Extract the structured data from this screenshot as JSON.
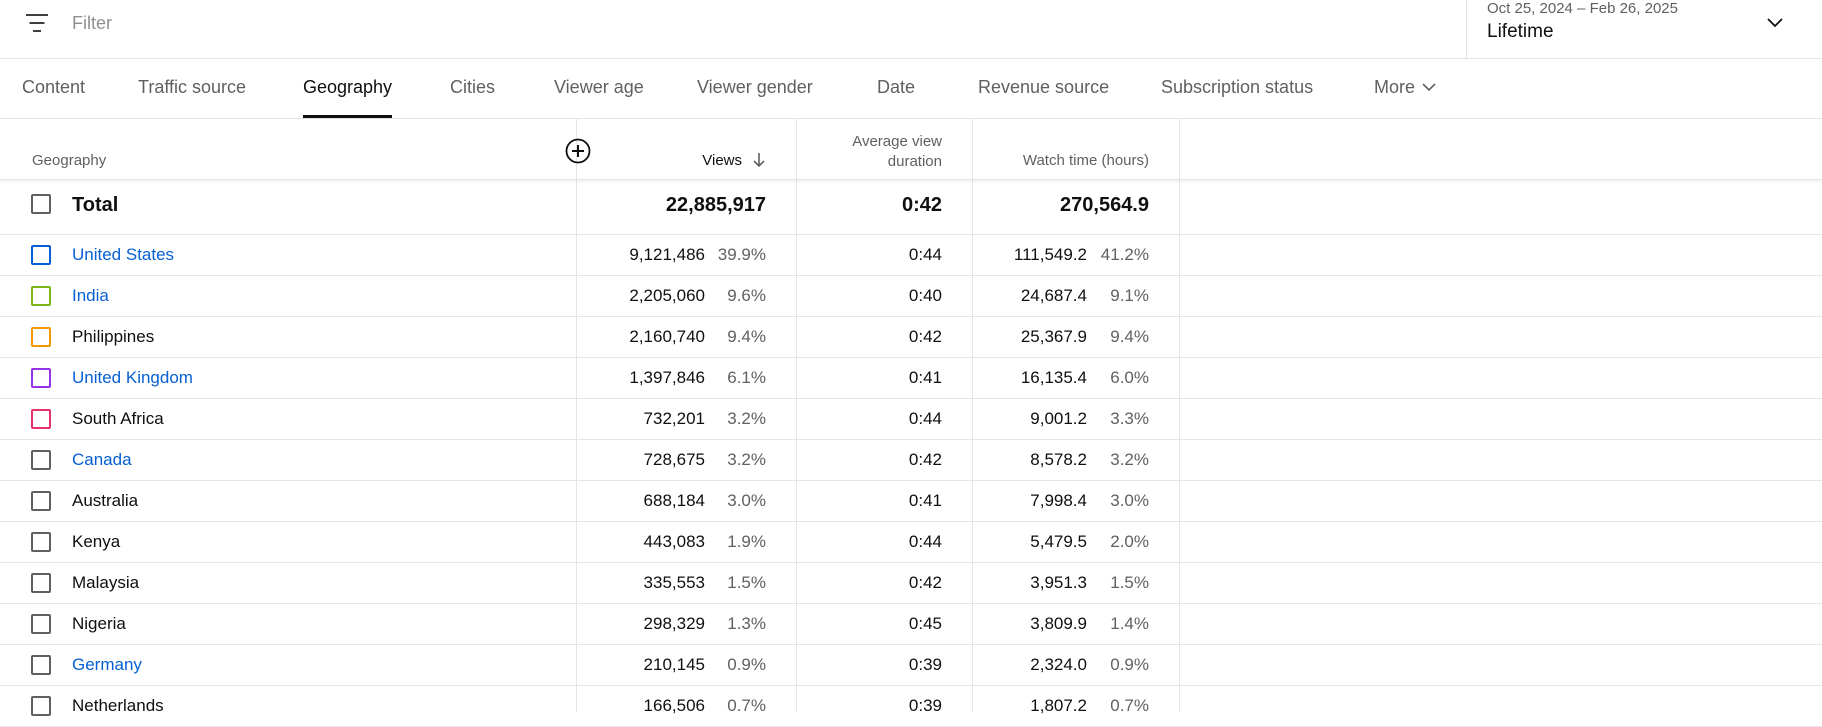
{
  "filter": {
    "placeholder": "Filter",
    "icon": "filter-icon"
  },
  "date_picker": {
    "range": "Oct 25, 2024 – Feb 26, 2025",
    "label": "Lifetime",
    "icon": "chevron-down-icon"
  },
  "tabs": [
    {
      "label": "Content",
      "active": false
    },
    {
      "label": "Traffic source",
      "active": false
    },
    {
      "label": "Geography",
      "active": true
    },
    {
      "label": "Cities",
      "active": false
    },
    {
      "label": "Viewer age",
      "active": false
    },
    {
      "label": "Viewer gender",
      "active": false
    },
    {
      "label": "Date",
      "active": false
    },
    {
      "label": "Revenue source",
      "active": false
    },
    {
      "label": "Subscription status",
      "active": false
    },
    {
      "label": "More",
      "active": false
    }
  ],
  "table": {
    "headers": {
      "geography": "Geography",
      "views": "Views",
      "avg_duration_line1": "Average view",
      "avg_duration_line2": "duration",
      "watch_time": "Watch time (hours)"
    },
    "total": {
      "label": "Total",
      "views": "22,885,917",
      "avg_duration": "0:42",
      "watch_time": "270,564.9"
    },
    "rows": [
      {
        "name": "United States",
        "link": true,
        "color": "#065fd4",
        "views": "9,121,486",
        "views_pct": "39.9%",
        "avg_duration": "0:44",
        "watch_time": "111,549.2",
        "watch_pct": "41.2%"
      },
      {
        "name": "India",
        "link": true,
        "color": "#7cb518",
        "views": "2,205,060",
        "views_pct": "9.6%",
        "avg_duration": "0:40",
        "watch_time": "24,687.4",
        "watch_pct": "9.1%"
      },
      {
        "name": "Philippines",
        "link": false,
        "color": "#f29900",
        "views": "2,160,740",
        "views_pct": "9.4%",
        "avg_duration": "0:42",
        "watch_time": "25,367.9",
        "watch_pct": "9.4%"
      },
      {
        "name": "United Kingdom",
        "link": true,
        "color": "#9334e6",
        "views": "1,397,846",
        "views_pct": "6.1%",
        "avg_duration": "0:41",
        "watch_time": "16,135.4",
        "watch_pct": "6.0%"
      },
      {
        "name": "South Africa",
        "link": false,
        "color": "#e8336a",
        "views": "732,201",
        "views_pct": "3.2%",
        "avg_duration": "0:44",
        "watch_time": "9,001.2",
        "watch_pct": "3.3%"
      },
      {
        "name": "Canada",
        "link": true,
        "color": "#606060",
        "views": "728,675",
        "views_pct": "3.2%",
        "avg_duration": "0:42",
        "watch_time": "8,578.2",
        "watch_pct": "3.2%"
      },
      {
        "name": "Australia",
        "link": false,
        "color": "#606060",
        "views": "688,184",
        "views_pct": "3.0%",
        "avg_duration": "0:41",
        "watch_time": "7,998.4",
        "watch_pct": "3.0%"
      },
      {
        "name": "Kenya",
        "link": false,
        "color": "#606060",
        "views": "443,083",
        "views_pct": "1.9%",
        "avg_duration": "0:44",
        "watch_time": "5,479.5",
        "watch_pct": "2.0%"
      },
      {
        "name": "Malaysia",
        "link": false,
        "color": "#606060",
        "views": "335,553",
        "views_pct": "1.5%",
        "avg_duration": "0:42",
        "watch_time": "3,951.3",
        "watch_pct": "1.5%"
      },
      {
        "name": "Nigeria",
        "link": false,
        "color": "#606060",
        "views": "298,329",
        "views_pct": "1.3%",
        "avg_duration": "0:45",
        "watch_time": "3,809.9",
        "watch_pct": "1.4%"
      },
      {
        "name": "Germany",
        "link": true,
        "color": "#606060",
        "views": "210,145",
        "views_pct": "0.9%",
        "avg_duration": "0:39",
        "watch_time": "2,324.0",
        "watch_pct": "0.9%"
      },
      {
        "name": "Netherlands",
        "link": false,
        "color": "#606060",
        "views": "166,506",
        "views_pct": "0.7%",
        "avg_duration": "0:39",
        "watch_time": "1,807.2",
        "watch_pct": "0.7%"
      }
    ]
  }
}
